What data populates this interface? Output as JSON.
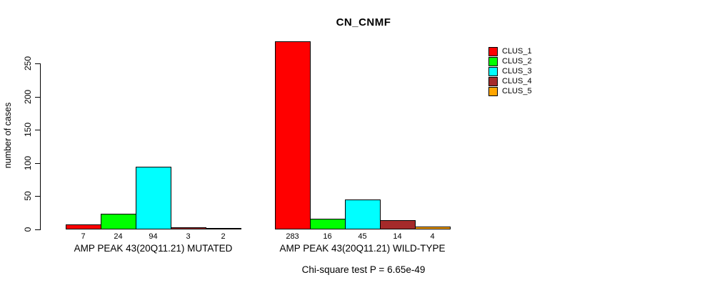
{
  "chart_data": {
    "type": "bar",
    "title": "CN_CNMF",
    "ylabel": "number of cases",
    "xlabel": "",
    "ylim": [
      0,
      250
    ],
    "yticks": [
      0,
      50,
      100,
      150,
      200,
      250
    ],
    "grid": false,
    "legend_position": "right-top",
    "background_color": "#FFFFFF",
    "bar_border_color": "#000000",
    "clusters": [
      {
        "name": "CLUS_1",
        "color": "#FF0000"
      },
      {
        "name": "CLUS_2",
        "color": "#00FF00"
      },
      {
        "name": "CLUS_3",
        "color": "#00FFFF"
      },
      {
        "name": "CLUS_4",
        "color": "#A52A2A"
      },
      {
        "name": "CLUS_5",
        "color": "#FFA500"
      }
    ],
    "groups": [
      {
        "label": "AMP PEAK 43(20Q11.21) MUTATED",
        "values": [
          7,
          24,
          94,
          3,
          2
        ]
      },
      {
        "label": "AMP PEAK 43(20Q11.21) WILD-TYPE",
        "values": [
          283,
          16,
          45,
          14,
          4
        ]
      }
    ],
    "footnote": "Chi-square test P = 6.65e-49"
  }
}
